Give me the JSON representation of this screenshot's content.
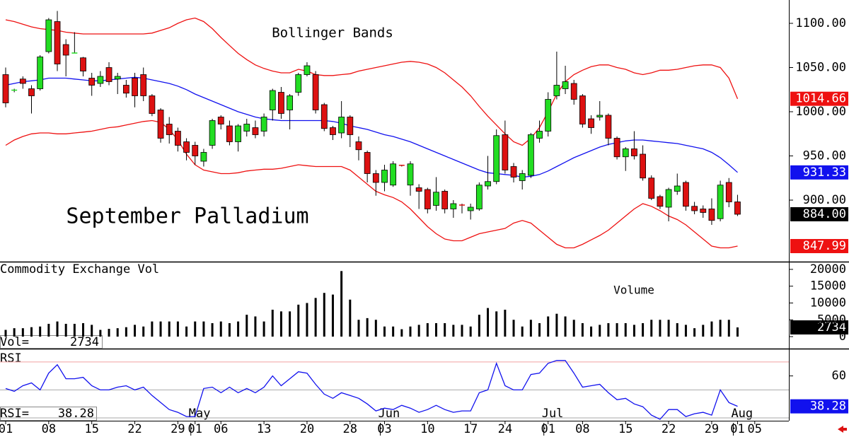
{
  "chart_data": [
    {
      "type": "candlestick",
      "title": "September Palladium",
      "annotation": "Bollinger Bands",
      "categories": [
        "01",
        null,
        null,
        null,
        null,
        "08",
        null,
        null,
        null,
        null,
        "15",
        null,
        null,
        null,
        null,
        "22",
        null,
        null,
        null,
        null,
        "29",
        null,
        "01",
        null,
        null,
        "06",
        null,
        null,
        null,
        null,
        "13",
        null,
        null,
        null,
        null,
        "20",
        null,
        null,
        null,
        null,
        "28",
        null,
        null,
        null,
        "03",
        null,
        null,
        null,
        null,
        "10",
        null,
        null,
        null,
        null,
        "17",
        null,
        null,
        null,
        "24",
        null,
        null,
        null,
        null,
        "01",
        null,
        null,
        null,
        "08",
        null,
        null,
        null,
        null,
        "15",
        null,
        null,
        null,
        null,
        "22",
        null,
        null,
        null,
        null,
        "29",
        null,
        null,
        "01",
        null,
        "05"
      ],
      "months": [
        null,
        null,
        null,
        null,
        null,
        null,
        null,
        null,
        null,
        null,
        null,
        null,
        null,
        null,
        null,
        null,
        null,
        null,
        null,
        null,
        null,
        null,
        "May",
        null,
        null,
        null,
        null,
        null,
        null,
        null,
        null,
        null,
        null,
        null,
        null,
        null,
        null,
        null,
        null,
        null,
        null,
        null,
        null,
        null,
        "Jun",
        null,
        null,
        null,
        null,
        null,
        null,
        null,
        null,
        null,
        null,
        null,
        null,
        null,
        null,
        null,
        null,
        null,
        null,
        "Jul",
        null,
        null,
        null,
        null,
        null,
        null,
        null,
        null,
        null,
        null,
        null,
        null,
        null,
        null,
        null,
        null,
        null,
        null,
        null,
        null,
        null,
        "Aug",
        null,
        null
      ],
      "open": [
        1042,
        1024,
        1037,
        1026,
        1026,
        1068,
        1102,
        1076,
        1066,
        1061,
        1038,
        1032,
        1050,
        1037,
        1030,
        1038,
        1042,
        1018,
        1002,
        986,
        978,
        966,
        962,
        944,
        962,
        994,
        984,
        966,
        978,
        982,
        978,
        1002,
        1022,
        1002,
        1022,
        1042,
        1042,
        1008,
        982,
        976,
        994,
        966,
        954,
        930,
        920,
        917,
        940,
        917,
        914,
        912,
        894,
        910,
        890,
        895,
        888,
        890,
        916,
        921,
        974,
        938,
        922,
        928,
        970,
        978,
        1018,
        1026,
        1032,
        1018,
        992,
        994,
        996,
        970,
        949,
        958,
        952,
        925,
        904,
        892,
        910,
        920,
        893,
        890,
        890,
        879,
        920,
        898,
        null,
        null
      ],
      "high": [
        1050,
        1026,
        1040,
        1030,
        1064,
        1106,
        1114,
        1082,
        1090,
        1062,
        1044,
        1046,
        1056,
        1044,
        1036,
        1044,
        1050,
        1020,
        1004,
        994,
        982,
        970,
        966,
        958,
        992,
        996,
        990,
        986,
        992,
        990,
        998,
        1026,
        1028,
        1020,
        1044,
        1056,
        1046,
        1010,
        984,
        1012,
        996,
        972,
        956,
        934,
        940,
        944,
        940,
        944,
        918,
        914,
        926,
        912,
        900,
        896,
        896,
        920,
        950,
        980,
        990,
        942,
        934,
        976,
        990,
        1022,
        1068,
        1052,
        1036,
        1020,
        996,
        1012,
        998,
        972,
        960,
        978,
        962,
        928,
        906,
        914,
        930,
        922,
        898,
        894,
        902,
        922,
        925,
        906,
        null,
        null
      ],
      "low": [
        1005,
        1022,
        1026,
        998,
        1024,
        1066,
        1046,
        1040,
        1066,
        1040,
        1018,
        1028,
        1030,
        1020,
        1016,
        1005,
        1012,
        995,
        965,
        964,
        955,
        945,
        940,
        938,
        958,
        980,
        962,
        955,
        972,
        970,
        972,
        990,
        992,
        980,
        1018,
        1040,
        998,
        978,
        968,
        970,
        960,
        945,
        920,
        905,
        910,
        915,
        938,
        905,
        890,
        885,
        888,
        885,
        880,
        885,
        878,
        888,
        912,
        918,
        930,
        920,
        912,
        925,
        965,
        972,
        1014,
        1020,
        1008,
        982,
        975,
        990,
        962,
        946,
        933,
        946,
        922,
        900,
        890,
        876,
        906,
        888,
        884,
        880,
        872,
        876,
        892,
        882,
        null,
        null
      ],
      "close": [
        1010,
        1025,
        1032,
        1018,
        1062,
        1104,
        1054,
        1064,
        1067,
        1046,
        1030,
        1040,
        1034,
        1040,
        1021,
        1018,
        1018,
        998,
        970,
        974,
        962,
        954,
        950,
        954,
        990,
        986,
        966,
        984,
        986,
        974,
        994,
        1024,
        998,
        1018,
        1042,
        1052,
        1002,
        981,
        974,
        994,
        974,
        957,
        930,
        920,
        934,
        941,
        939,
        941,
        910,
        890,
        909,
        890,
        896,
        894,
        892,
        917,
        921,
        973,
        934,
        926,
        930,
        974,
        978,
        1014,
        1030,
        1034,
        1014,
        986,
        982,
        996,
        970,
        949,
        958,
        950,
        925,
        902,
        893,
        912,
        916,
        893,
        888,
        886,
        877,
        917,
        898,
        884,
        null,
        null
      ],
      "close_label": "884.00",
      "up_color": "#22dd22",
      "down_color": "#dd1111",
      "bands": [
        {
          "color": "#ee1111",
          "values": [
            1104,
            1102,
            1099,
            1096,
            1094,
            1093,
            1092,
            1090,
            1089,
            1088,
            1088,
            1088,
            1088,
            1088,
            1088,
            1088,
            1088,
            1089,
            1092,
            1095,
            1100,
            1104,
            1106,
            1102,
            1094,
            1084,
            1075,
            1066,
            1059,
            1053,
            1049,
            1046,
            1044,
            1044,
            1048,
            1046,
            1042,
            1041,
            1041,
            1042,
            1043,
            1046,
            1048,
            1050,
            1052,
            1054,
            1056,
            1057,
            1056,
            1054,
            1050,
            1044,
            1036,
            1028,
            1018,
            1006,
            995,
            985,
            975,
            966,
            962,
            970,
            982,
            1000,
            1020,
            1034,
            1042,
            1047,
            1051,
            1053,
            1053,
            1050,
            1048,
            1044,
            1042,
            1044,
            1047,
            1047,
            1048,
            1050,
            1052,
            1053,
            1053,
            1050,
            1038,
            1014.66,
            null,
            null
          ]
        },
        {
          "color": "#1111ee",
          "values": [
            1030,
            1032,
            1034,
            1035,
            1036,
            1038,
            1038,
            1038,
            1037,
            1036,
            1035,
            1035,
            1036,
            1037,
            1038,
            1039,
            1038,
            1036,
            1034,
            1032,
            1029,
            1025,
            1020,
            1016,
            1012,
            1008,
            1004,
            1000,
            997,
            994,
            992,
            991,
            990,
            990,
            990,
            990,
            990,
            990,
            989,
            987,
            984,
            982,
            980,
            977,
            974,
            972,
            969,
            966,
            962,
            958,
            954,
            950,
            946,
            942,
            938,
            934,
            931,
            930,
            929,
            928,
            926,
            927,
            929,
            933,
            938,
            943,
            948,
            952,
            956,
            960,
            963,
            965,
            967,
            968,
            968,
            967,
            966,
            965,
            964,
            962,
            960,
            958,
            954,
            948,
            940,
            931.33,
            null,
            null
          ]
        },
        {
          "color": "#ee1111",
          "values": [
            962,
            968,
            972,
            975,
            976,
            976,
            975,
            975,
            976,
            977,
            978,
            980,
            982,
            983,
            985,
            987,
            989,
            990,
            988,
            980,
            968,
            952,
            940,
            934,
            932,
            930,
            930,
            931,
            933,
            934,
            935,
            935,
            936,
            938,
            940,
            939,
            938,
            938,
            938,
            938,
            934,
            926,
            918,
            910,
            906,
            903,
            898,
            890,
            880,
            870,
            862,
            856,
            854,
            854,
            858,
            862,
            864,
            866,
            868,
            874,
            877,
            874,
            866,
            858,
            850,
            846,
            846,
            850,
            855,
            860,
            866,
            874,
            882,
            890,
            896,
            893,
            888,
            882,
            878,
            872,
            864,
            856,
            848,
            846,
            846,
            847.99,
            null,
            null
          ]
        }
      ],
      "ylim": [
        830.4,
        1126.4
      ],
      "yticks": [
        {
          "value": 900,
          "label": "900.00"
        },
        {
          "value": 950,
          "label": "950.00"
        },
        {
          "value": 1000,
          "label": "1000.00"
        },
        {
          "value": 1050,
          "label": "1050.00"
        },
        {
          "value": 1100,
          "label": "1100.00"
        }
      ]
    },
    {
      "type": "bar",
      "title": "Commodity Exchange Vol",
      "annotation": "Volume",
      "readout": "Vol=",
      "color": "#000000",
      "values": [
        2000,
        2500,
        2500,
        2800,
        3000,
        3800,
        4500,
        3800,
        3800,
        4000,
        3500,
        2000,
        2300,
        2500,
        2800,
        3500,
        3000,
        4500,
        4500,
        4500,
        4500,
        3000,
        4500,
        4500,
        4000,
        4500,
        4000,
        4500,
        6500,
        6000,
        4500,
        8000,
        7500,
        7500,
        9500,
        10000,
        11500,
        13000,
        12500,
        19500,
        11000,
        5000,
        5500,
        5000,
        3000,
        3000,
        2200,
        3000,
        3500,
        4000,
        4000,
        4000,
        3500,
        3500,
        3000,
        6500,
        8500,
        7500,
        8000,
        5000,
        3000,
        5000,
        4000,
        6000,
        6800,
        6000,
        5000,
        4000,
        3000,
        3500,
        4000,
        4000,
        4000,
        3500,
        4000,
        5000,
        5000,
        5000,
        4000,
        3500,
        2500,
        3500,
        4500,
        5000,
        5000,
        2734,
        null,
        null
      ],
      "ylim": [
        -3570,
        22300
      ],
      "yticks": [
        0,
        5000,
        10000,
        15000,
        20000
      ]
    },
    {
      "type": "line",
      "title": "RSI",
      "readout": "RSI=",
      "color": "#1111ee",
      "values": [
        51,
        49,
        53,
        55,
        50,
        62,
        68,
        58,
        58,
        59,
        53,
        50,
        50,
        52,
        53,
        50,
        52,
        46,
        41,
        36,
        34,
        31,
        31,
        51,
        52,
        48,
        52,
        48,
        51,
        48,
        52,
        60,
        53,
        58,
        63,
        62,
        54,
        47,
        44,
        48,
        46,
        44,
        40,
        35,
        37,
        36,
        39,
        37,
        34,
        36,
        39,
        36,
        34,
        35,
        35,
        48,
        50,
        69,
        53,
        50,
        50,
        61,
        62,
        69,
        71,
        71,
        62,
        52,
        53,
        54,
        48,
        43,
        44,
        40,
        38,
        32,
        29,
        36,
        36,
        31,
        33,
        34,
        32,
        50,
        41,
        38.28,
        null,
        null
      ],
      "reference_lines": [
        {
          "value": 70,
          "color": "#f0a0a0"
        },
        {
          "value": 50,
          "color": "#aaaaaa"
        },
        {
          "value": 30,
          "color": "#aaaaaa"
        }
      ],
      "ylim": [
        28,
        79.5
      ],
      "yticks": [
        60
      ]
    }
  ]
}
